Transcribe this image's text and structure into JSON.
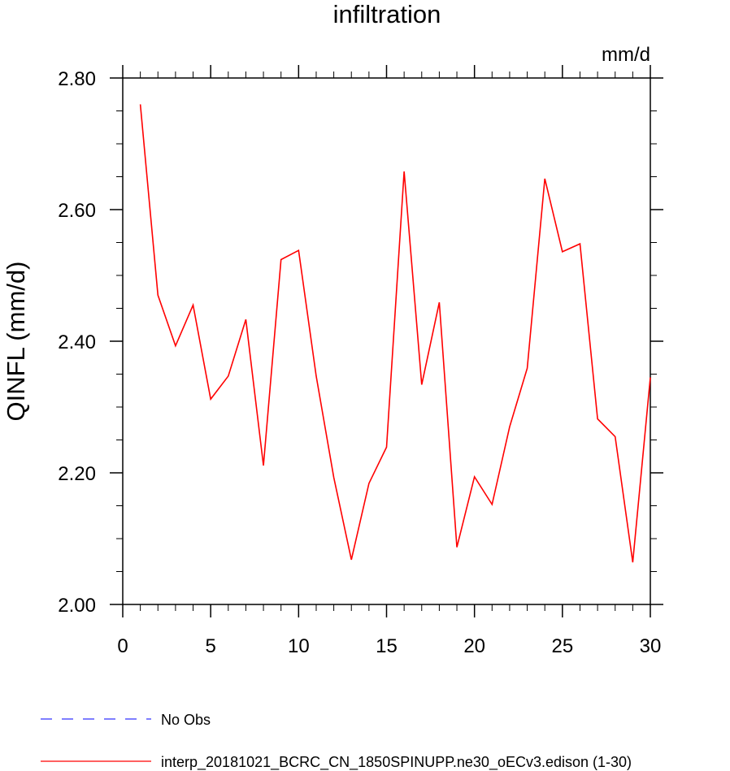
{
  "chart_data": {
    "type": "line",
    "title": "infiltration",
    "units_label": "mm/d",
    "xlabel": "",
    "ylabel": "QINFL  (mm/d)",
    "xlim": [
      0,
      30
    ],
    "ylim": [
      2.0,
      2.8
    ],
    "x_ticks": [
      0,
      5,
      10,
      15,
      20,
      25,
      30
    ],
    "x_tick_labels": [
      "0",
      "5",
      "10",
      "15",
      "20",
      "25",
      "30"
    ],
    "y_ticks": [
      2.0,
      2.2,
      2.4,
      2.6,
      2.8
    ],
    "y_tick_labels": [
      "2.00",
      "2.20",
      "2.40",
      "2.60",
      "2.80"
    ],
    "grid": false,
    "legend_position": "bottom",
    "series": [
      {
        "name": "interp_20181021_BCRC_CN_1850SPINUPP.ne30_oECv3.edison (1-30)",
        "color": "#ff0000",
        "style": "solid",
        "x": [
          1,
          2,
          3,
          4,
          5,
          6,
          7,
          8,
          9,
          10,
          11,
          12,
          13,
          14,
          15,
          16,
          17,
          18,
          19,
          20,
          21,
          22,
          23,
          24,
          25,
          26,
          27,
          28,
          29,
          30
        ],
        "values": [
          2.76,
          2.47,
          2.393,
          2.455,
          2.312,
          2.347,
          2.433,
          2.211,
          2.524,
          2.538,
          2.347,
          2.193,
          2.068,
          2.184,
          2.239,
          2.658,
          2.334,
          2.459,
          2.087,
          2.194,
          2.152,
          2.27,
          2.359,
          2.647,
          2.536,
          2.548,
          2.282,
          2.255,
          2.064,
          2.345
        ]
      }
    ],
    "legend": [
      {
        "label": "No Obs",
        "color": "#3333ff",
        "style": "dashed"
      },
      {
        "label": "interp_20181021_BCRC_CN_1850SPINUPP.ne30_oECv3.edison (1-30)",
        "color": "#ff0000",
        "style": "solid"
      }
    ]
  }
}
